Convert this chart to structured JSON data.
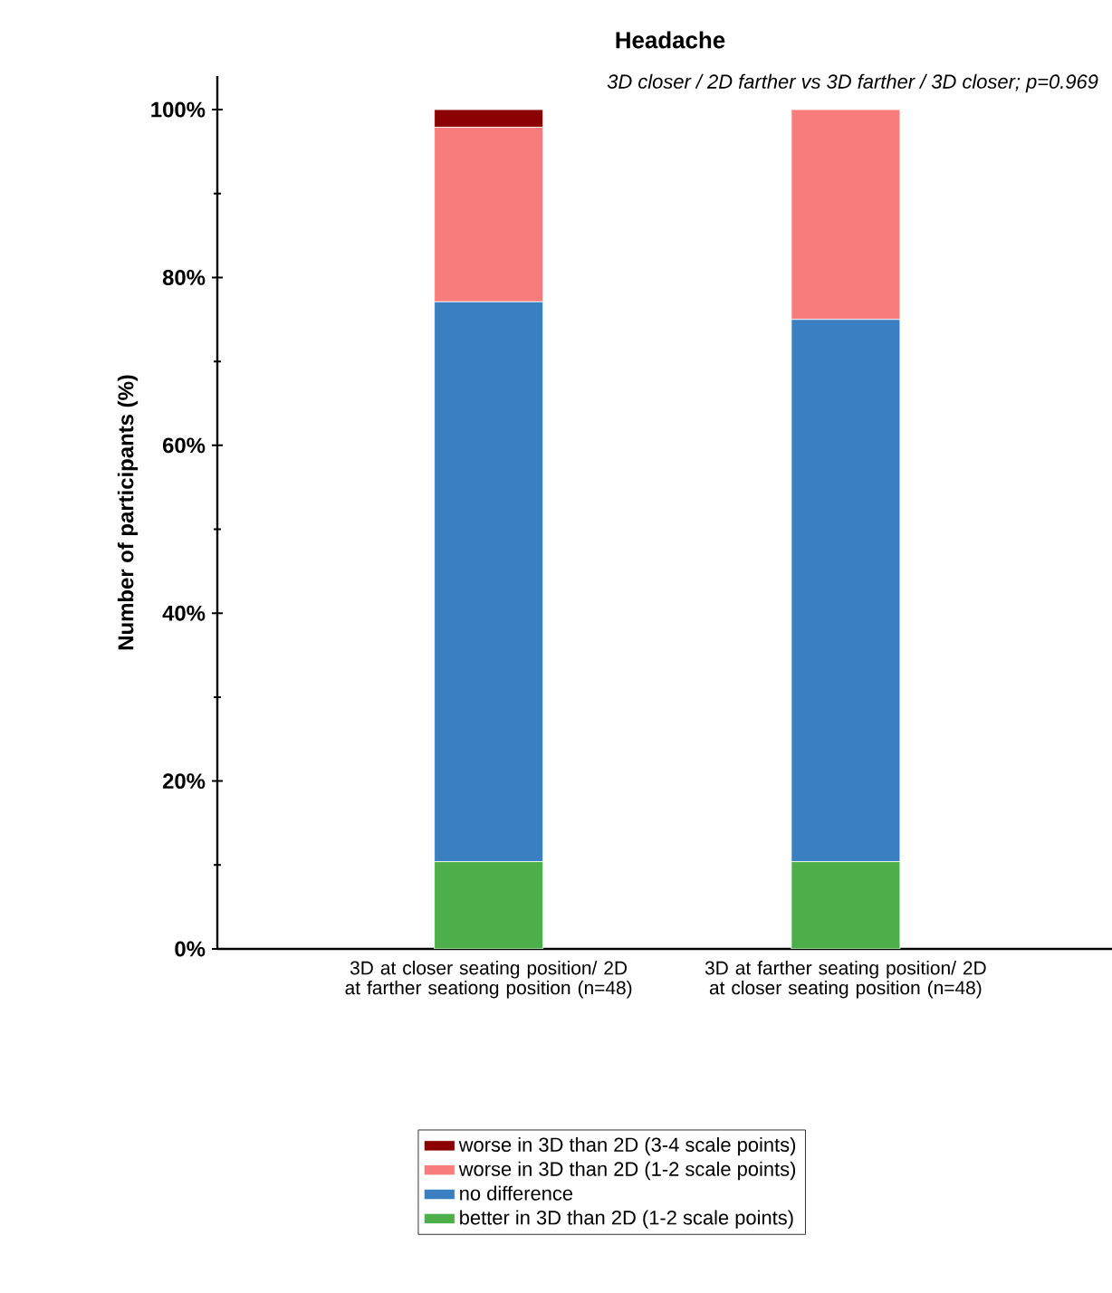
{
  "chart_data": {
    "type": "bar",
    "stacked": true,
    "title": "Headache",
    "ylabel": "Number of participants (%)",
    "annotations": [
      "3D closer / 2D farther vs 3D farther / 3D closer; p=0.969"
    ],
    "categories": [
      "3D at closer seating position/ 2D at farther seationg position (n=48)",
      "3D at farther seating position/ 2D at closer seating position (n=48)"
    ],
    "series": [
      {
        "name": "better in 3D than 2D (1-2 scale points)",
        "color": "#4daf4a",
        "values": [
          10.4,
          10.4
        ]
      },
      {
        "name": "no difference",
        "color": "#3a7fc1",
        "values": [
          66.7,
          64.6
        ]
      },
      {
        "name": "worse in 3D than 2D (1-2 scale points)",
        "color": "#f87c7c",
        "values": [
          20.8,
          25.0
        ]
      },
      {
        "name": "worse in 3D than 2D (3-4 scale points)",
        "color": "#8b0000",
        "values": [
          2.1,
          0
        ]
      }
    ],
    "ylim": [
      0,
      104
    ],
    "yticks": [
      {
        "value": 0,
        "label": "0%"
      },
      {
        "value": 20,
        "label": "20%"
      },
      {
        "value": 40,
        "label": "40%"
      },
      {
        "value": 60,
        "label": "60%"
      },
      {
        "value": 80,
        "label": "80%"
      },
      {
        "value": 100,
        "label": "100%"
      }
    ],
    "legend": "bottom",
    "grid": false
  }
}
